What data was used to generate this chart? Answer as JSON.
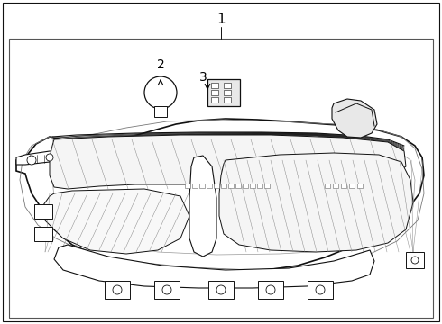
{
  "background_color": "#ffffff",
  "line_color": "#333333",
  "dark_line": "#111111",
  "light_gray": "#d8d8d8",
  "mid_gray": "#bbbbbb",
  "label_1": "1",
  "label_2": "2",
  "label_3": "3",
  "fig_width": 4.9,
  "fig_height": 3.6,
  "dpi": 100
}
